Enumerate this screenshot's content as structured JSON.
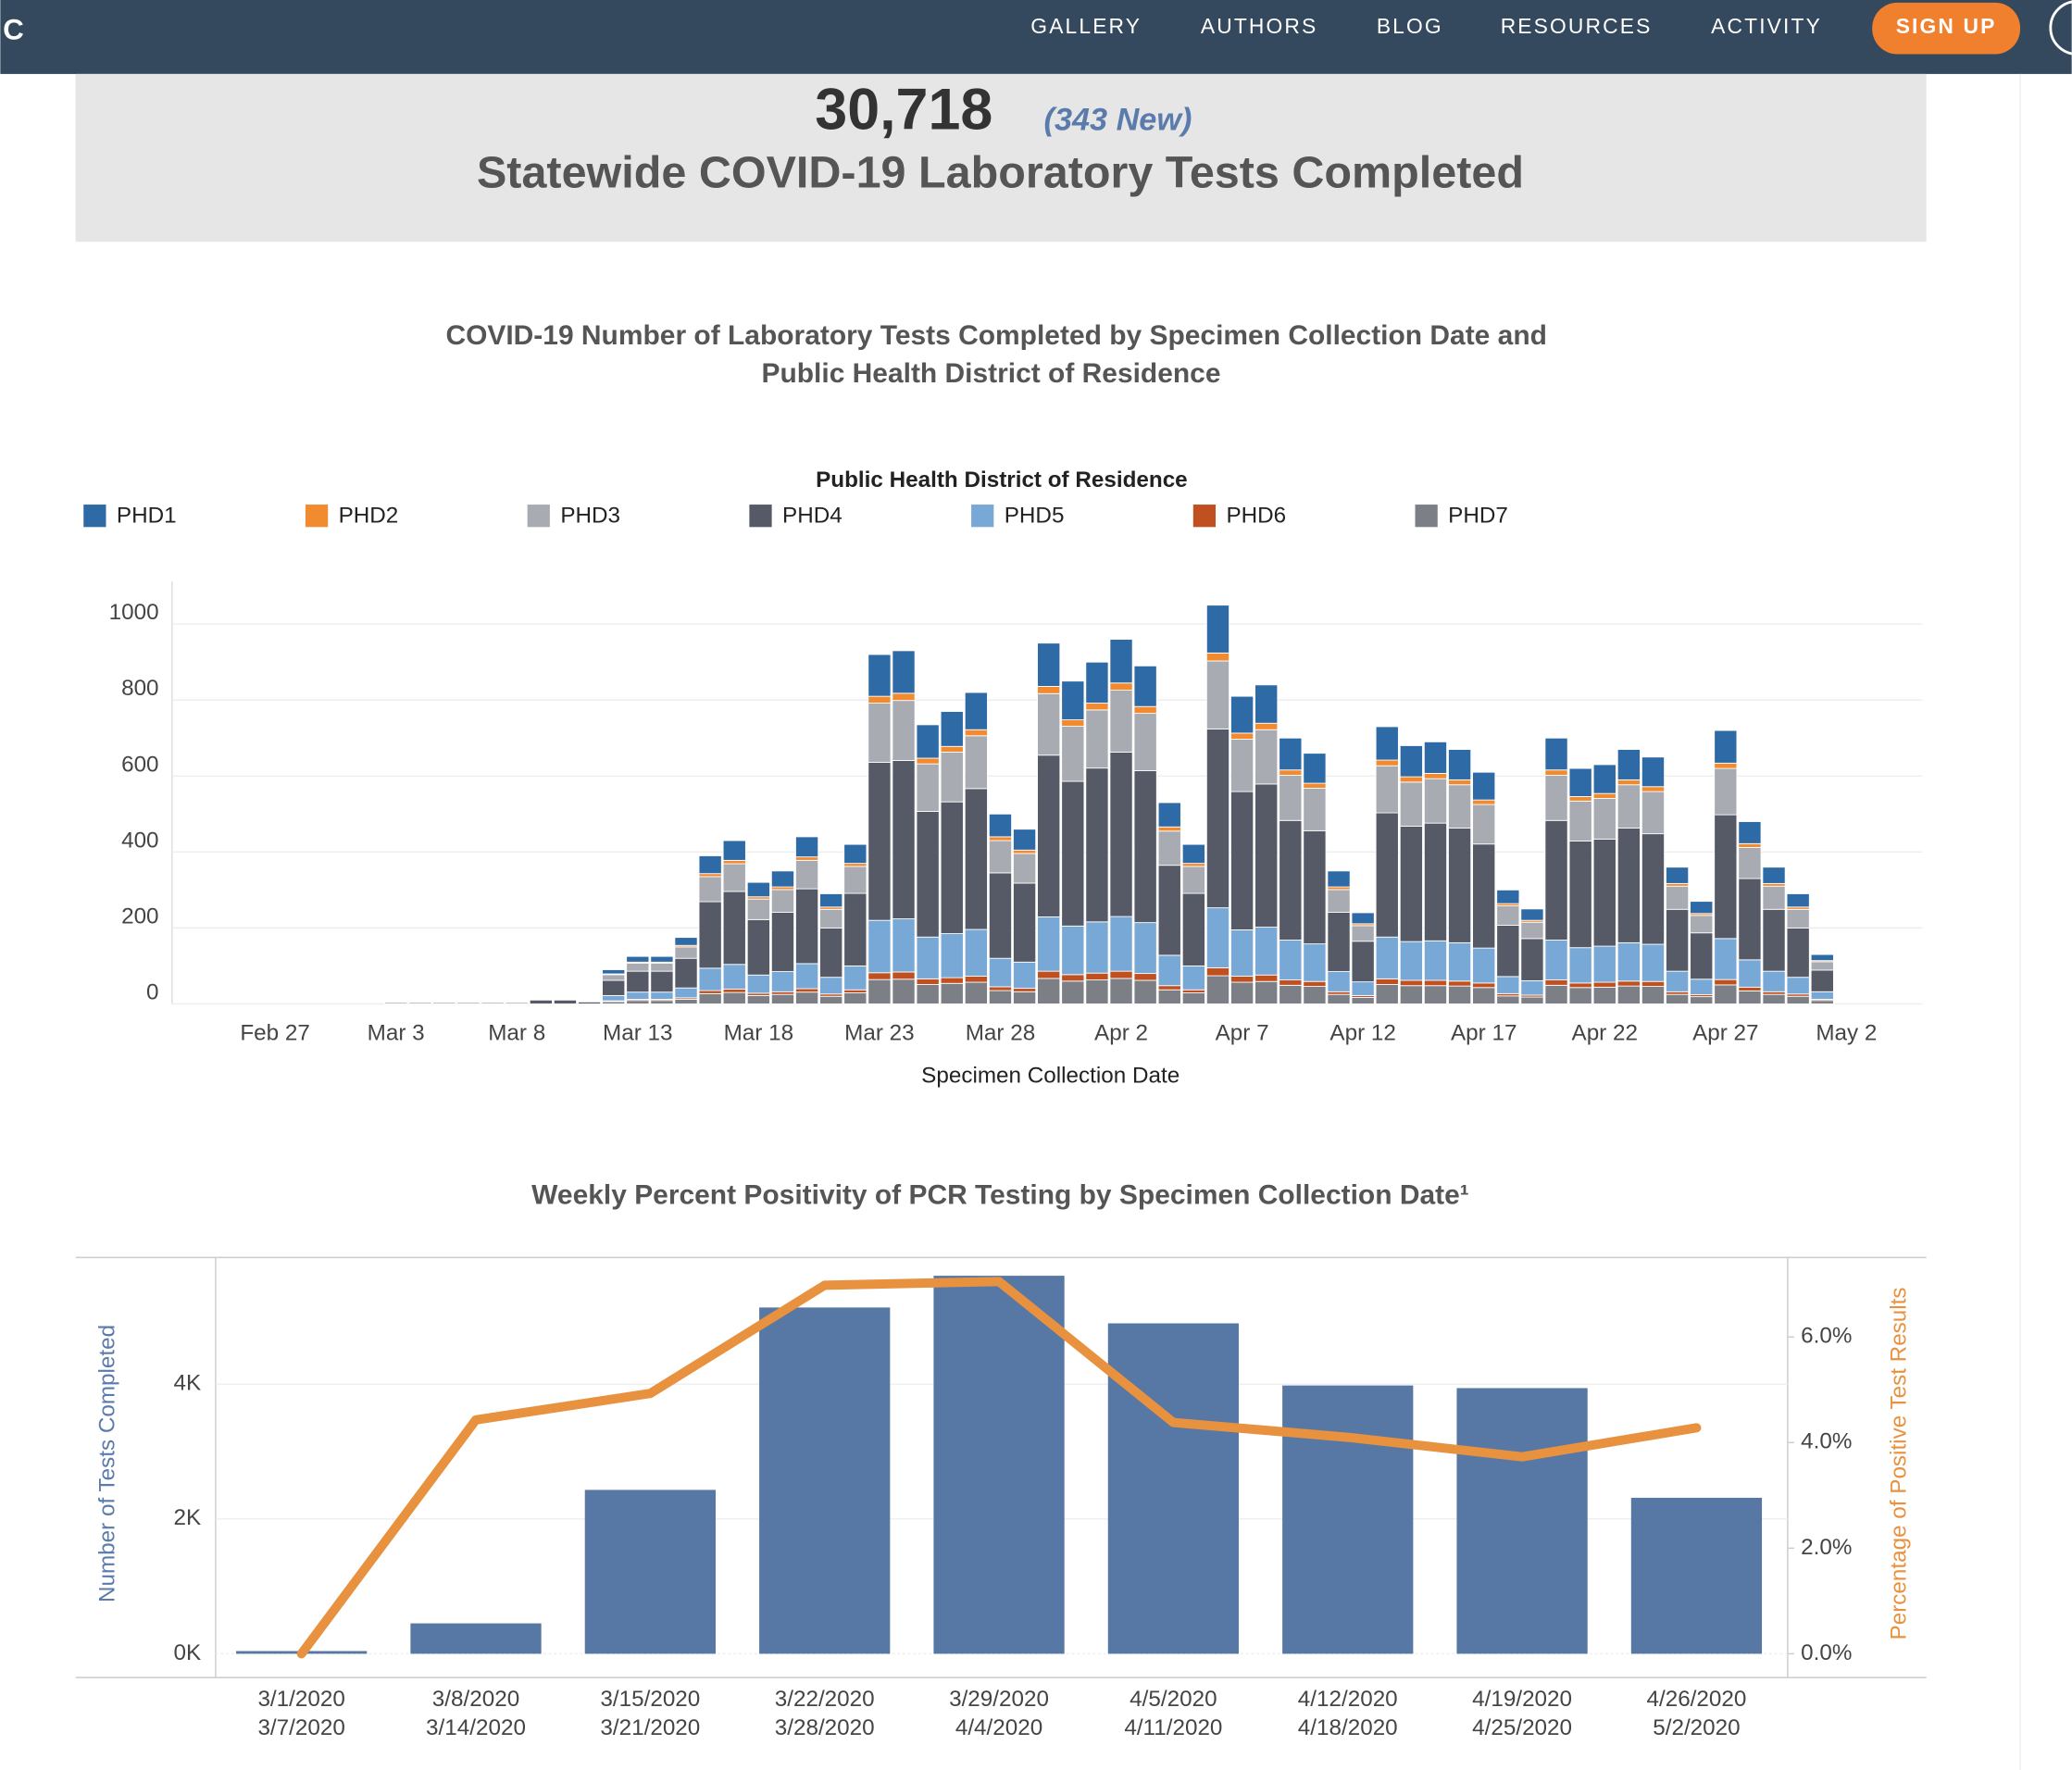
{
  "nav": {
    "logo": "C",
    "links": [
      "GALLERY",
      "AUTHORS",
      "BLOG",
      "RESOURCES",
      "ACTIVITY"
    ],
    "signup": "SIGN UP"
  },
  "banner": {
    "count": "30,718",
    "new": "(343 New)",
    "title": "Statewide COVID-19 Laboratory Tests Completed"
  },
  "chart_data": [
    {
      "type": "stacked",
      "title": [
        "COVID-19 Number of Laboratory Tests Completed by Specimen Collection Date and",
        "Public Health District of Residence"
      ],
      "legend_title": "Public Health District of Residence",
      "legend": "top",
      "xlabel": "Specimen Collection Date",
      "categories": [
        "Feb 27",
        null,
        null,
        null,
        null,
        "Mar 3",
        null,
        null,
        null,
        null,
        "Mar 8",
        null,
        null,
        null,
        null,
        "Mar 13",
        null,
        null,
        null,
        null,
        "Mar 18",
        null,
        null,
        null,
        null,
        "Mar 23",
        null,
        null,
        null,
        null,
        "Mar 28",
        null,
        null,
        null,
        null,
        "Apr 2",
        null,
        null,
        null,
        null,
        "Apr 7",
        null,
        null,
        null,
        null,
        "Apr 12",
        null,
        null,
        null,
        null,
        "Apr 17",
        null,
        null,
        null,
        null,
        "Apr 22",
        null,
        null,
        null,
        null,
        "Apr 27",
        null,
        null,
        null,
        null,
        "May 2"
      ],
      "ylim": [
        0,
        1120
      ],
      "yticks": [
        0,
        200,
        400,
        600,
        800,
        1000
      ],
      "grid": true,
      "series": [
        {
          "name": "PHD1",
          "color": "#2e6aa6",
          "values": [
            0,
            0,
            0,
            0,
            0,
            0,
            0,
            0,
            0,
            0,
            0,
            0,
            0,
            0,
            11,
            15,
            15,
            21,
            47,
            52,
            38,
            42,
            53,
            35,
            50,
            110,
            112,
            88,
            92,
            98,
            60,
            55,
            114,
            102,
            108,
            115,
            107,
            64,
            50,
            126,
            97,
            101,
            84,
            79,
            42,
            29,
            88,
            82,
            83,
            80,
            73,
            36,
            30,
            84,
            74,
            76,
            80,
            78,
            43,
            32,
            86,
            58,
            43,
            35,
            16,
            0
          ]
        },
        {
          "name": "PHD2",
          "color": "#f28a30",
          "values": [
            0,
            0,
            0,
            0,
            0,
            0,
            0,
            0,
            0,
            0,
            0,
            0,
            0,
            0,
            2,
            3,
            3,
            4,
            8,
            9,
            6,
            7,
            9,
            6,
            8,
            18,
            19,
            15,
            15,
            16,
            10,
            9,
            19,
            17,
            18,
            19,
            18,
            11,
            8,
            21,
            16,
            17,
            14,
            13,
            7,
            5,
            15,
            14,
            14,
            13,
            12,
            6,
            5,
            14,
            12,
            13,
            13,
            13,
            7,
            5,
            14,
            10,
            7,
            6,
            3,
            0
          ]
        },
        {
          "name": "PHD3",
          "color": "#a9abb3",
          "values": [
            0,
            0,
            0,
            0,
            0,
            0,
            0,
            0,
            0,
            0,
            0,
            0,
            0,
            0,
            15,
            21,
            21,
            30,
            66,
            73,
            54,
            60,
            75,
            49,
            71,
            156,
            158,
            125,
            131,
            139,
            85,
            78,
            162,
            145,
            153,
            163,
            151,
            90,
            71,
            179,
            138,
            143,
            119,
            112,
            60,
            41,
            124,
            116,
            117,
            114,
            104,
            51,
            43,
            119,
            105,
            107,
            114,
            111,
            61,
            46,
            122,
            82,
            61,
            49,
            22,
            0
          ]
        },
        {
          "name": "PHD4",
          "color": "#555a66",
          "values": [
            0,
            0,
            0,
            0,
            0,
            3,
            3,
            3,
            3,
            3,
            3,
            10,
            10,
            5,
            40,
            55,
            55,
            78,
            175,
            192,
            146,
            156,
            197,
            130,
            191,
            416,
            417,
            331,
            347,
            371,
            225,
            208,
            426,
            381,
            405,
            433,
            400,
            237,
            191,
            471,
            364,
            377,
            315,
            298,
            156,
            107,
            327,
            304,
            310,
            302,
            274,
            135,
            111,
            315,
            281,
            282,
            302,
            291,
            163,
            122,
            326,
            214,
            163,
            130,
            57,
            0
          ]
        },
        {
          "name": "PHD5",
          "color": "#78a9d6",
          "values": [
            0,
            0,
            0,
            0,
            0,
            0,
            0,
            0,
            0,
            0,
            0,
            0,
            0,
            0,
            14,
            19,
            19,
            26,
            59,
            65,
            48,
            53,
            66,
            44,
            63,
            138,
            140,
            110,
            116,
            123,
            75,
            69,
            143,
            128,
            135,
            144,
            134,
            80,
            63,
            158,
            122,
            126,
            105,
            99,
            53,
            36,
            110,
            102,
            104,
            101,
            92,
            45,
            38,
            105,
            93,
            95,
            101,
            98,
            54,
            41,
            108,
            72,
            54,
            44,
            20,
            0
          ]
        },
        {
          "name": "PHD6",
          "color": "#c0501f",
          "values": [
            0,
            0,
            0,
            0,
            0,
            0,
            0,
            0,
            0,
            0,
            0,
            0,
            0,
            0,
            2,
            3,
            3,
            4,
            8,
            9,
            6,
            7,
            9,
            6,
            8,
            18,
            19,
            15,
            15,
            16,
            10,
            9,
            19,
            17,
            18,
            19,
            18,
            11,
            8,
            21,
            16,
            17,
            14,
            13,
            7,
            5,
            15,
            14,
            14,
            13,
            12,
            6,
            5,
            14,
            12,
            13,
            13,
            13,
            7,
            5,
            14,
            10,
            7,
            6,
            3,
            0
          ]
        },
        {
          "name": "PHD7",
          "color": "#7d7f86",
          "values": [
            0,
            0,
            0,
            0,
            0,
            0,
            0,
            0,
            0,
            0,
            0,
            0,
            0,
            0,
            6,
            9,
            9,
            12,
            27,
            30,
            22,
            25,
            31,
            20,
            29,
            64,
            65,
            51,
            54,
            57,
            35,
            32,
            67,
            60,
            63,
            67,
            62,
            37,
            29,
            74,
            57,
            59,
            49,
            46,
            25,
            17,
            51,
            48,
            48,
            47,
            43,
            21,
            18,
            49,
            43,
            44,
            47,
            46,
            25,
            19,
            50,
            34,
            25,
            20,
            9,
            0
          ]
        }
      ]
    },
    {
      "type": "combo",
      "title": "Weekly Percent Positivity of PCR Testing by Specimen Collection Date¹",
      "ylabel": "Number of Tests Completed",
      "y2label": "Percentage of Positive Test Results",
      "categories": [
        [
          "3/1/2020",
          "3/7/2020"
        ],
        [
          "3/8/2020",
          "3/14/2020"
        ],
        [
          "3/15/2020",
          "3/21/2020"
        ],
        [
          "3/22/2020",
          "3/28/2020"
        ],
        [
          "3/29/2020",
          "4/4/2020"
        ],
        [
          "4/5/2020",
          "4/11/2020"
        ],
        [
          "4/12/2020",
          "4/18/2020"
        ],
        [
          "4/19/2020",
          "4/25/2020"
        ],
        [
          "4/26/2020",
          "5/2/2020"
        ]
      ],
      "ylim": [
        0,
        5820
      ],
      "yticks": [
        {
          "value": 0,
          "label": "0K"
        },
        {
          "value": 2000,
          "label": "2K"
        },
        {
          "value": 4000,
          "label": "4K"
        }
      ],
      "y2lim": [
        0,
        7.43
      ],
      "y2ticks": [
        {
          "value": 0,
          "label": "0.0%"
        },
        {
          "value": 2,
          "label": "2.0%"
        },
        {
          "value": 4,
          "label": "4.0%"
        },
        {
          "value": 6,
          "label": "6.0%"
        }
      ],
      "grid": true,
      "series": [
        {
          "type": "bar",
          "color": "#5778a4",
          "values": [
            40,
            451,
            2431,
            5137,
            5608,
            4902,
            3980,
            3941,
            2314
          ]
        },
        {
          "type": "line",
          "axis": "y2",
          "color": "#e8913f",
          "values": [
            0.0,
            4.43,
            4.93,
            6.98,
            7.05,
            4.38,
            4.1,
            3.73,
            4.28
          ]
        }
      ]
    }
  ]
}
